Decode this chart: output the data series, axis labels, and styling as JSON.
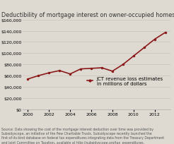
{
  "title": "Deductibility of mortgage interest on owner-occupied homes",
  "x": [
    2000,
    2001,
    2002,
    2003,
    2004,
    2005,
    2006,
    2007,
    2008,
    2009,
    2010,
    2011,
    2012,
    2013
  ],
  "y": [
    54000,
    60000,
    65000,
    69000,
    63000,
    72000,
    73000,
    74000,
    68000,
    80000,
    95000,
    110000,
    125000,
    137000
  ],
  "line_color": "#8B1A1A",
  "line_width": 1.2,
  "marker": "o",
  "marker_size": 1.5,
  "ylim": [
    0,
    160000
  ],
  "yticks": [
    0,
    20000,
    40000,
    60000,
    80000,
    100000,
    120000,
    140000,
    160000
  ],
  "xlim": [
    1999.5,
    2013.5
  ],
  "xticks": [
    2000,
    2002,
    2004,
    2006,
    2008,
    2010,
    2012
  ],
  "legend_label": "JCT revenue loss estimates\nin millions of dollars",
  "source_text": "Source: Data showing the cost of the mortgage interest deduction over time was provided by\nSubsidyscope, an initiative of the Pew Charitable Trusts. Subsidyscope recently launched the\nfirst-of-its-kind database on federal tax expenditures integrating data from the Treasury Department\nand Joint Committee on Taxation, available at http://subsidyscope.org/tax_expenditures.",
  "background_color": "#dedad2",
  "plot_bg_color": "#dedad2",
  "title_fontsize": 5.8,
  "axis_fontsize": 4.5,
  "legend_fontsize": 5.0,
  "source_fontsize": 3.3,
  "grid_color": "#c8c4bc"
}
